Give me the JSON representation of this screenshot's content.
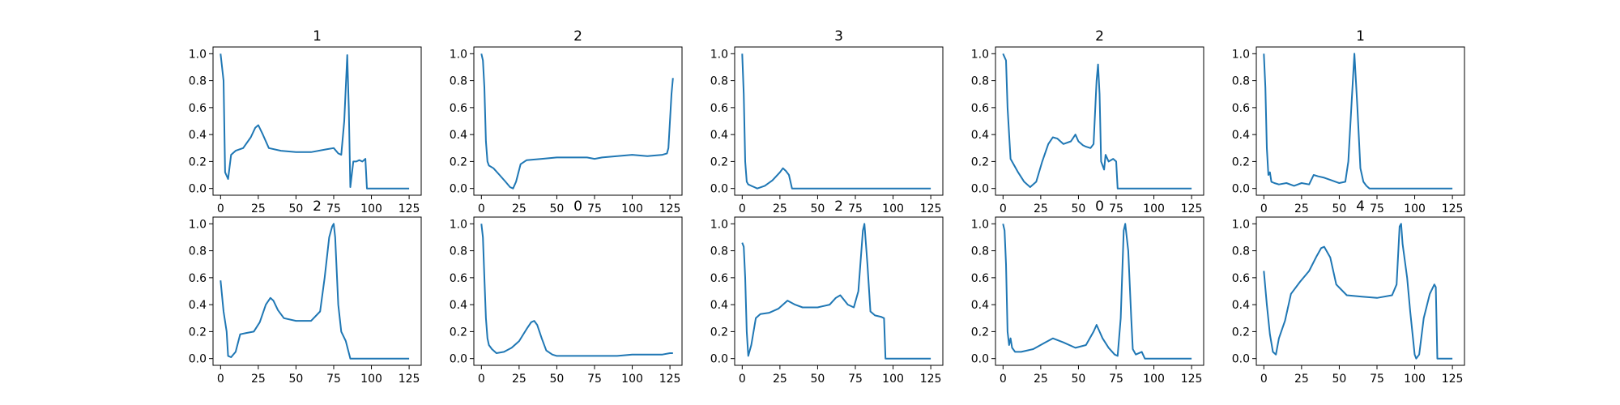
{
  "colors": {
    "line": "#1f77b4",
    "axes": "#000000",
    "background": "#ffffff"
  },
  "chart_data": [
    {
      "type": "line",
      "title": "1",
      "xlim": [
        -5,
        133
      ],
      "ylim": [
        -0.05,
        1.05
      ],
      "xticks": [
        0,
        25,
        50,
        75,
        100,
        125
      ],
      "yticks": [
        0.0,
        0.2,
        0.4,
        0.6,
        0.8,
        1.0
      ],
      "x": [
        0,
        2,
        3,
        5,
        7,
        10,
        15,
        20,
        23,
        25,
        28,
        32,
        40,
        50,
        60,
        70,
        75,
        78,
        80,
        82,
        84,
        85,
        86,
        88,
        90,
        92,
        94,
        96,
        97,
        100,
        110,
        120,
        125
      ],
      "series": [
        {
          "values": [
            1.0,
            0.8,
            0.12,
            0.07,
            0.25,
            0.28,
            0.3,
            0.38,
            0.45,
            0.47,
            0.4,
            0.3,
            0.28,
            0.27,
            0.27,
            0.29,
            0.3,
            0.26,
            0.25,
            0.5,
            0.99,
            0.6,
            0.01,
            0.2,
            0.2,
            0.21,
            0.2,
            0.22,
            0.0,
            0.0,
            0.0,
            0.0,
            0.0
          ]
        }
      ]
    },
    {
      "type": "line",
      "title": "2",
      "xlim": [
        -5,
        133
      ],
      "ylim": [
        -0.05,
        1.05
      ],
      "xticks": [
        0,
        25,
        50,
        75,
        100,
        125
      ],
      "yticks": [
        0.0,
        0.2,
        0.4,
        0.6,
        0.8,
        1.0
      ],
      "x": [
        0,
        1,
        2,
        3,
        4,
        5,
        8,
        12,
        16,
        19,
        21,
        23,
        26,
        30,
        40,
        50,
        60,
        70,
        75,
        80,
        90,
        100,
        110,
        120,
        123,
        124,
        125,
        126,
        127
      ],
      "series": [
        {
          "values": [
            1.0,
            0.95,
            0.75,
            0.35,
            0.2,
            0.17,
            0.15,
            0.1,
            0.05,
            0.01,
            0.0,
            0.05,
            0.18,
            0.21,
            0.22,
            0.23,
            0.23,
            0.23,
            0.22,
            0.23,
            0.24,
            0.25,
            0.24,
            0.25,
            0.26,
            0.3,
            0.5,
            0.7,
            0.82
          ]
        }
      ]
    },
    {
      "type": "line",
      "title": "3",
      "xlim": [
        -5,
        133
      ],
      "ylim": [
        -0.05,
        1.05
      ],
      "xticks": [
        0,
        25,
        50,
        75,
        100,
        125
      ],
      "yticks": [
        0.0,
        0.2,
        0.4,
        0.6,
        0.8,
        1.0
      ],
      "x": [
        0,
        1,
        2,
        3,
        4,
        6,
        8,
        10,
        15,
        20,
        25,
        27,
        29,
        31,
        33,
        40,
        50,
        75,
        100,
        125
      ],
      "series": [
        {
          "values": [
            1.0,
            0.7,
            0.2,
            0.05,
            0.03,
            0.02,
            0.01,
            0.0,
            0.02,
            0.06,
            0.12,
            0.15,
            0.13,
            0.1,
            0.0,
            0.0,
            0.0,
            0.0,
            0.0,
            0.0
          ]
        }
      ]
    },
    {
      "type": "line",
      "title": "2",
      "xlim": [
        -5,
        133
      ],
      "ylim": [
        -0.05,
        1.05
      ],
      "xticks": [
        0,
        25,
        50,
        75,
        100,
        125
      ],
      "yticks": [
        0.0,
        0.2,
        0.4,
        0.6,
        0.8,
        1.0
      ],
      "x": [
        0,
        2,
        3,
        5,
        7,
        10,
        14,
        18,
        22,
        26,
        30,
        33,
        36,
        40,
        45,
        48,
        50,
        53,
        55,
        58,
        60,
        62,
        63,
        64,
        65,
        67,
        68,
        70,
        73,
        75,
        76,
        80,
        100,
        125
      ],
      "series": [
        {
          "values": [
            1.0,
            0.95,
            0.6,
            0.22,
            0.18,
            0.12,
            0.05,
            0.01,
            0.05,
            0.2,
            0.33,
            0.38,
            0.37,
            0.33,
            0.35,
            0.4,
            0.35,
            0.32,
            0.31,
            0.3,
            0.33,
            0.8,
            0.92,
            0.7,
            0.2,
            0.14,
            0.25,
            0.2,
            0.22,
            0.2,
            0.0,
            0.0,
            0.0,
            0.0
          ]
        }
      ]
    },
    {
      "type": "line",
      "title": "1",
      "xlim": [
        -5,
        133
      ],
      "ylim": [
        -0.05,
        1.05
      ],
      "xticks": [
        0,
        25,
        50,
        75,
        100,
        125
      ],
      "yticks": [
        0.0,
        0.2,
        0.4,
        0.6,
        0.8,
        1.0
      ],
      "x": [
        0,
        1,
        2,
        3,
        4,
        5,
        7,
        10,
        15,
        20,
        25,
        30,
        33,
        36,
        40,
        45,
        50,
        54,
        56,
        58,
        60,
        62,
        64,
        66,
        68,
        70,
        75,
        100,
        125
      ],
      "series": [
        {
          "values": [
            1.0,
            0.75,
            0.3,
            0.1,
            0.12,
            0.05,
            0.04,
            0.03,
            0.04,
            0.02,
            0.04,
            0.03,
            0.1,
            0.09,
            0.08,
            0.06,
            0.04,
            0.05,
            0.2,
            0.6,
            1.0,
            0.6,
            0.15,
            0.05,
            0.02,
            0.0,
            0.0,
            0.0,
            0.0
          ]
        }
      ]
    },
    {
      "type": "line",
      "title": "2",
      "xlim": [
        -5,
        133
      ],
      "ylim": [
        -0.05,
        1.05
      ],
      "xticks": [
        0,
        25,
        50,
        75,
        100,
        125
      ],
      "yticks": [
        0.0,
        0.2,
        0.4,
        0.6,
        0.8,
        1.0
      ],
      "x": [
        0,
        2,
        4,
        5,
        7,
        10,
        13,
        17,
        22,
        26,
        30,
        33,
        35,
        38,
        42,
        50,
        60,
        66,
        69,
        72,
        74,
        75,
        76,
        78,
        80,
        83,
        86,
        100,
        125
      ],
      "series": [
        {
          "values": [
            0.58,
            0.35,
            0.2,
            0.02,
            0.01,
            0.05,
            0.18,
            0.19,
            0.2,
            0.27,
            0.4,
            0.45,
            0.43,
            0.36,
            0.3,
            0.28,
            0.28,
            0.35,
            0.6,
            0.9,
            0.98,
            1.0,
            0.9,
            0.4,
            0.2,
            0.13,
            0.0,
            0.0,
            0.0
          ]
        }
      ]
    },
    {
      "type": "line",
      "title": "0",
      "xlim": [
        -5,
        133
      ],
      "ylim": [
        -0.05,
        1.05
      ],
      "xticks": [
        0,
        25,
        50,
        75,
        100,
        125
      ],
      "yticks": [
        0.0,
        0.2,
        0.4,
        0.6,
        0.8,
        1.0
      ],
      "x": [
        0,
        1,
        2,
        3,
        4,
        5,
        7,
        10,
        15,
        20,
        25,
        30,
        33,
        35,
        37,
        40,
        43,
        47,
        50,
        60,
        70,
        80,
        90,
        100,
        110,
        120,
        125,
        127
      ],
      "series": [
        {
          "values": [
            1.0,
            0.9,
            0.6,
            0.3,
            0.15,
            0.1,
            0.07,
            0.04,
            0.05,
            0.08,
            0.13,
            0.22,
            0.27,
            0.28,
            0.25,
            0.15,
            0.06,
            0.03,
            0.02,
            0.02,
            0.02,
            0.02,
            0.02,
            0.03,
            0.03,
            0.03,
            0.04,
            0.04
          ]
        }
      ]
    },
    {
      "type": "line",
      "title": "2",
      "xlim": [
        -5,
        133
      ],
      "ylim": [
        -0.05,
        1.05
      ],
      "xticks": [
        0,
        25,
        50,
        75,
        100,
        125
      ],
      "yticks": [
        0.0,
        0.2,
        0.4,
        0.6,
        0.8,
        1.0
      ],
      "x": [
        0,
        1,
        2,
        3,
        4,
        6,
        9,
        12,
        18,
        24,
        30,
        35,
        40,
        50,
        58,
        62,
        65,
        70,
        74,
        77,
        80,
        81,
        83,
        85,
        88,
        92,
        94,
        95,
        100,
        125
      ],
      "series": [
        {
          "values": [
            0.86,
            0.83,
            0.6,
            0.2,
            0.02,
            0.1,
            0.3,
            0.33,
            0.34,
            0.37,
            0.43,
            0.4,
            0.38,
            0.38,
            0.4,
            0.45,
            0.47,
            0.4,
            0.38,
            0.5,
            0.95,
            1.0,
            0.7,
            0.35,
            0.32,
            0.31,
            0.3,
            0.0,
            0.0,
            0.0
          ]
        }
      ]
    },
    {
      "type": "line",
      "title": "0",
      "xlim": [
        -5,
        133
      ],
      "ylim": [
        -0.05,
        1.05
      ],
      "xticks": [
        0,
        25,
        50,
        75,
        100,
        125
      ],
      "yticks": [
        0.0,
        0.2,
        0.4,
        0.6,
        0.8,
        1.0
      ],
      "x": [
        0,
        1,
        2,
        3,
        4,
        5,
        6,
        8,
        12,
        20,
        28,
        33,
        40,
        48,
        55,
        60,
        62,
        64,
        66,
        70,
        74,
        76,
        78,
        80,
        81,
        83,
        85,
        86,
        88,
        92,
        94,
        100,
        125
      ],
      "series": [
        {
          "values": [
            1.0,
            0.95,
            0.7,
            0.2,
            0.1,
            0.15,
            0.08,
            0.05,
            0.05,
            0.07,
            0.12,
            0.15,
            0.12,
            0.08,
            0.1,
            0.2,
            0.25,
            0.2,
            0.15,
            0.08,
            0.03,
            0.02,
            0.3,
            0.95,
            1.0,
            0.8,
            0.3,
            0.07,
            0.03,
            0.05,
            0.0,
            0.0,
            0.0
          ]
        }
      ]
    },
    {
      "type": "line",
      "title": "4",
      "xlim": [
        -5,
        133
      ],
      "ylim": [
        -0.05,
        1.05
      ],
      "xticks": [
        0,
        25,
        50,
        75,
        100,
        125
      ],
      "yticks": [
        0.0,
        0.2,
        0.4,
        0.6,
        0.8,
        1.0
      ],
      "x": [
        0,
        2,
        4,
        6,
        8,
        10,
        14,
        18,
        24,
        30,
        35,
        38,
        40,
        44,
        48,
        55,
        65,
        75,
        85,
        88,
        90,
        91,
        92,
        95,
        97,
        100,
        101,
        103,
        106,
        110,
        113,
        114,
        115,
        125
      ],
      "series": [
        {
          "values": [
            0.65,
            0.4,
            0.18,
            0.05,
            0.03,
            0.15,
            0.28,
            0.48,
            0.57,
            0.65,
            0.76,
            0.82,
            0.83,
            0.75,
            0.55,
            0.47,
            0.46,
            0.45,
            0.47,
            0.55,
            0.98,
            1.0,
            0.85,
            0.6,
            0.35,
            0.03,
            0.0,
            0.03,
            0.3,
            0.48,
            0.55,
            0.53,
            0.0,
            0.0
          ]
        }
      ]
    }
  ]
}
